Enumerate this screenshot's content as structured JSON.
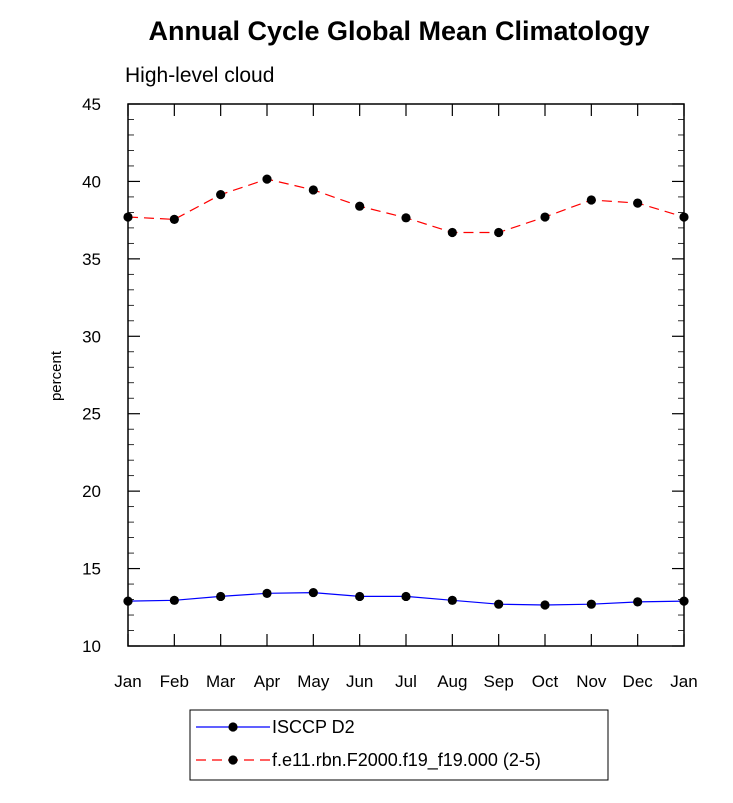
{
  "chart_data": {
    "type": "line",
    "title": "Annual Cycle Global Mean Climatology",
    "subtitle": "High-level cloud",
    "ylabel": "percent",
    "xlabel": "",
    "categories": [
      "Jan",
      "Feb",
      "Mar",
      "Apr",
      "May",
      "Jun",
      "Jul",
      "Aug",
      "Sep",
      "Oct",
      "Nov",
      "Dec",
      "Jan"
    ],
    "ylim": [
      10,
      45
    ],
    "yticks": [
      10,
      15,
      20,
      25,
      30,
      35,
      40,
      45
    ],
    "grid": false,
    "legend_position": "bottom",
    "series": [
      {
        "name": "ISCCP D2",
        "color": "#0000ff",
        "dash": "solid",
        "marker": "circle",
        "values": [
          12.9,
          12.95,
          13.2,
          13.4,
          13.45,
          13.2,
          13.2,
          12.95,
          12.7,
          12.65,
          12.7,
          12.85,
          12.9
        ]
      },
      {
        "name": "f.e11.rbn.F2000.f19_f19.000 (2-5)",
        "color": "#ff0000",
        "dash": "dashed",
        "marker": "circle",
        "values": [
          37.7,
          37.55,
          39.15,
          40.15,
          39.45,
          38.4,
          37.65,
          36.7,
          36.7,
          37.7,
          38.8,
          38.6,
          37.7
        ]
      }
    ]
  }
}
